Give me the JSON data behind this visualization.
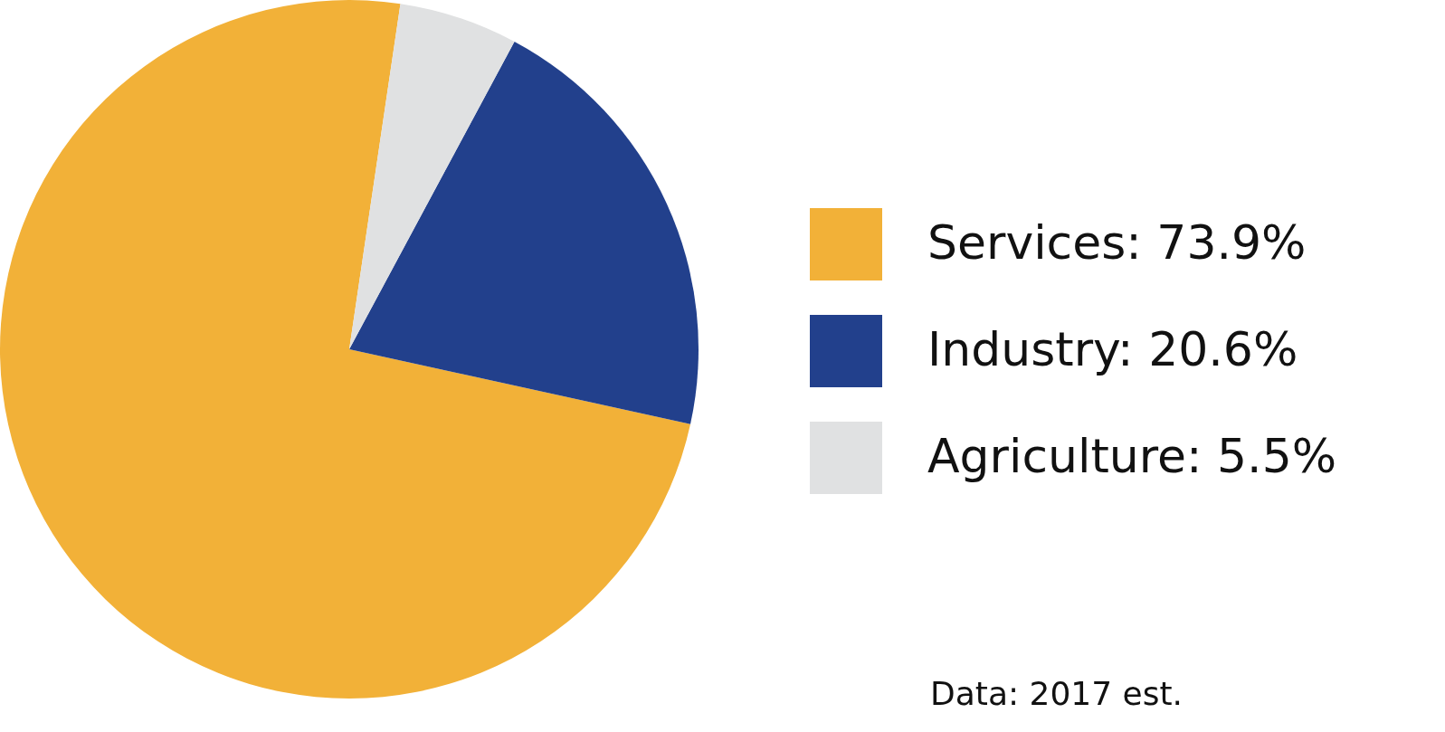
{
  "chart_data": {
    "type": "pie",
    "categories": [
      "Services",
      "Industry",
      "Agriculture"
    ],
    "values": [
      73.9,
      20.6,
      5.5
    ],
    "value_labels": [
      "73.9%",
      "20.6%",
      "5.5%"
    ],
    "colors": [
      "#f2b138",
      "#22408c",
      "#e0e1e2"
    ],
    "legend": "right",
    "annotations": [
      "Data: 2017 est."
    ]
  }
}
